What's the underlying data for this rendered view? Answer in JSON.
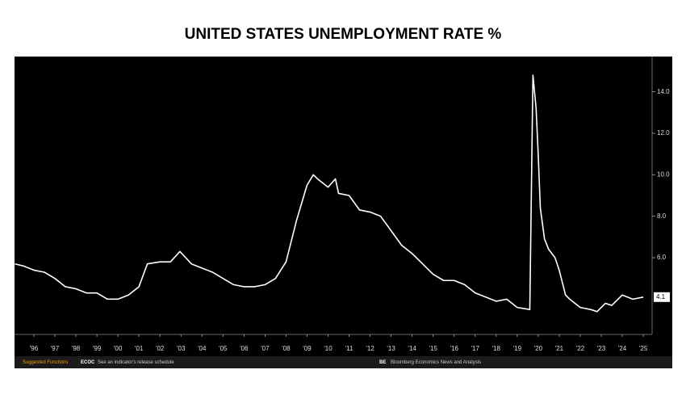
{
  "chart_data": {
    "type": "line",
    "title": "UNITED STATES UNEMPLOYMENT RATE %",
    "x": [
      1995.6,
      1996.0,
      1996.5,
      1997.0,
      1997.5,
      1998.0,
      1998.5,
      1999.0,
      1999.5,
      2000.0,
      2000.5,
      2001.0,
      2001.5,
      2001.9,
      2002.5,
      2003.0,
      2003.45,
      2004.0,
      2004.5,
      2005.0,
      2005.5,
      2006.0,
      2006.5,
      2007.0,
      2007.5,
      2008.0,
      2008.5,
      2009.0,
      2009.5,
      2009.8,
      2010.0,
      2010.5,
      2010.85,
      2011.0,
      2011.5,
      2012.0,
      2012.5,
      2013.0,
      2013.5,
      2014.0,
      2014.5,
      2015.0,
      2015.5,
      2016.0,
      2016.5,
      2017.0,
      2017.5,
      2018.0,
      2018.5,
      2019.0,
      2019.5,
      2020.1,
      2020.25,
      2020.4,
      2020.5,
      2020.6,
      2020.8,
      2021.0,
      2021.3,
      2021.5,
      2021.8,
      2022.0,
      2022.5,
      2023.0,
      2023.3,
      2023.7,
      2024.0,
      2024.5,
      2025.0,
      2025.5
    ],
    "values": [
      5.7,
      5.6,
      5.4,
      5.3,
      5.0,
      4.6,
      4.5,
      4.3,
      4.3,
      4.0,
      4.0,
      4.2,
      4.6,
      5.7,
      5.8,
      5.8,
      6.3,
      5.7,
      5.5,
      5.3,
      5.0,
      4.7,
      4.6,
      4.6,
      4.7,
      5.0,
      5.8,
      7.8,
      9.5,
      10.0,
      9.8,
      9.4,
      9.8,
      9.1,
      9.0,
      8.3,
      8.2,
      8.0,
      7.3,
      6.6,
      6.2,
      5.7,
      5.2,
      4.9,
      4.9,
      4.7,
      4.3,
      4.1,
      3.9,
      4.0,
      3.6,
      3.5,
      14.8,
      13.2,
      11.0,
      8.4,
      6.9,
      6.4,
      6.0,
      5.4,
      4.2,
      4.0,
      3.6,
      3.5,
      3.4,
      3.8,
      3.7,
      4.2,
      4.0,
      4.1
    ],
    "color": "#ffffff",
    "xlim": [
      1995.58,
      2025.92
    ],
    "xticks": [
      {
        "value": 1996.5,
        "label": "'96"
      },
      {
        "value": 1997.5,
        "label": "'97"
      },
      {
        "value": 1998.5,
        "label": "'98"
      },
      {
        "value": 1999.5,
        "label": "'99"
      },
      {
        "value": 2000.5,
        "label": "'00"
      },
      {
        "value": 2001.5,
        "label": "'01"
      },
      {
        "value": 2002.5,
        "label": "'02"
      },
      {
        "value": 2003.5,
        "label": "'03"
      },
      {
        "value": 2004.5,
        "label": "'04"
      },
      {
        "value": 2005.5,
        "label": "'05"
      },
      {
        "value": 2006.5,
        "label": "'06"
      },
      {
        "value": 2007.5,
        "label": "'07"
      },
      {
        "value": 2008.5,
        "label": "'08"
      },
      {
        "value": 2009.5,
        "label": "'09"
      },
      {
        "value": 2010.5,
        "label": "'10"
      },
      {
        "value": 2011.5,
        "label": "'11"
      },
      {
        "value": 2012.5,
        "label": "'12"
      },
      {
        "value": 2013.5,
        "label": "'13"
      },
      {
        "value": 2014.5,
        "label": "'14"
      },
      {
        "value": 2015.5,
        "label": "'15"
      },
      {
        "value": 2016.5,
        "label": "'16"
      },
      {
        "value": 2017.5,
        "label": "'17"
      },
      {
        "value": 2018.5,
        "label": "'18"
      },
      {
        "value": 2019.5,
        "label": "'19"
      },
      {
        "value": 2020.5,
        "label": "'20"
      },
      {
        "value": 2021.5,
        "label": "'21"
      },
      {
        "value": 2022.5,
        "label": "'22"
      },
      {
        "value": 2023.5,
        "label": "'23"
      },
      {
        "value": 2024.5,
        "label": "'24"
      },
      {
        "value": 2025.5,
        "label": "'25"
      }
    ],
    "ylim": [
      2.3,
      15.7
    ],
    "yticks": [
      {
        "value": 6,
        "label": "6.0"
      },
      {
        "value": 8,
        "label": "8.0"
      },
      {
        "value": 10,
        "label": "10.0"
      },
      {
        "value": 12,
        "label": "12.0"
      },
      {
        "value": 14,
        "label": "14.0"
      }
    ],
    "footer": {
      "functions": "Suggested Functions",
      "code1": "ECOC",
      "desc1": "See an indicator's release schedule",
      "code2": "BE",
      "desc2": "Bloomberg Economics News and Analysis"
    }
  }
}
